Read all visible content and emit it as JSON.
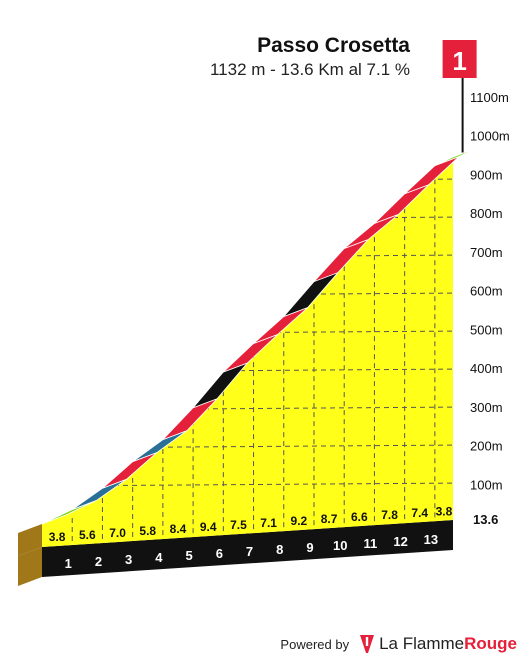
{
  "header": {
    "title": "Passo Crosetta",
    "subtitle": "1132 m - 13.6 Km al 7.1 %"
  },
  "summit_flag": {
    "label": "1",
    "color": "#e5203a"
  },
  "footer": {
    "powered_label": "Powered by",
    "brand_part1": "La Flamme",
    "brand_part2": "Rouge",
    "logo_icon": "flame-rouge-logo-icon"
  },
  "colors": {
    "fill": "#ffff1a",
    "base_side": "#a0781a",
    "base_front": "#111111",
    "grade_0_4": "#7ed321",
    "grade_4_6": "#2a6f97",
    "grade_6_9": "#e5203a",
    "grade_9_plus": "#111111"
  },
  "chart_data": {
    "type": "area",
    "title": "Passo Crosetta",
    "xlabel": "",
    "ylabel": "",
    "y_axis_ticks": [
      "100m",
      "200m",
      "300m",
      "400m",
      "500m",
      "600m",
      "700m",
      "800m",
      "900m",
      "1000m",
      "1100m"
    ],
    "ylim": [
      0,
      1132
    ],
    "km_markers": [
      "1",
      "2",
      "3",
      "4",
      "5",
      "6",
      "7",
      "8",
      "9",
      "10",
      "11",
      "12",
      "13"
    ],
    "total_distance_label": "13.6",
    "segments": [
      {
        "km": "1",
        "gradient": 3.8,
        "label": "3.8"
      },
      {
        "km": "2",
        "gradient": 5.6,
        "label": "5.6"
      },
      {
        "km": "3",
        "gradient": 7.0,
        "label": "7.0"
      },
      {
        "km": "4",
        "gradient": 5.8,
        "label": "5.8"
      },
      {
        "km": "5",
        "gradient": 8.4,
        "label": "8.4"
      },
      {
        "km": "6",
        "gradient": 9.4,
        "label": "9.4"
      },
      {
        "km": "7",
        "gradient": 7.5,
        "label": "7.5"
      },
      {
        "km": "8",
        "gradient": 7.1,
        "label": "7.1"
      },
      {
        "km": "9",
        "gradient": 9.2,
        "label": "9.2"
      },
      {
        "km": "10",
        "gradient": 8.7,
        "label": "8.7"
      },
      {
        "km": "11",
        "gradient": 6.6,
        "label": "6.6"
      },
      {
        "km": "12",
        "gradient": 7.8,
        "label": "7.8"
      },
      {
        "km": "13",
        "gradient": 7.4,
        "label": "7.4"
      },
      {
        "km": "13.6",
        "gradient": 3.8,
        "label": "3.8"
      }
    ],
    "grid": true,
    "legend": "none"
  }
}
